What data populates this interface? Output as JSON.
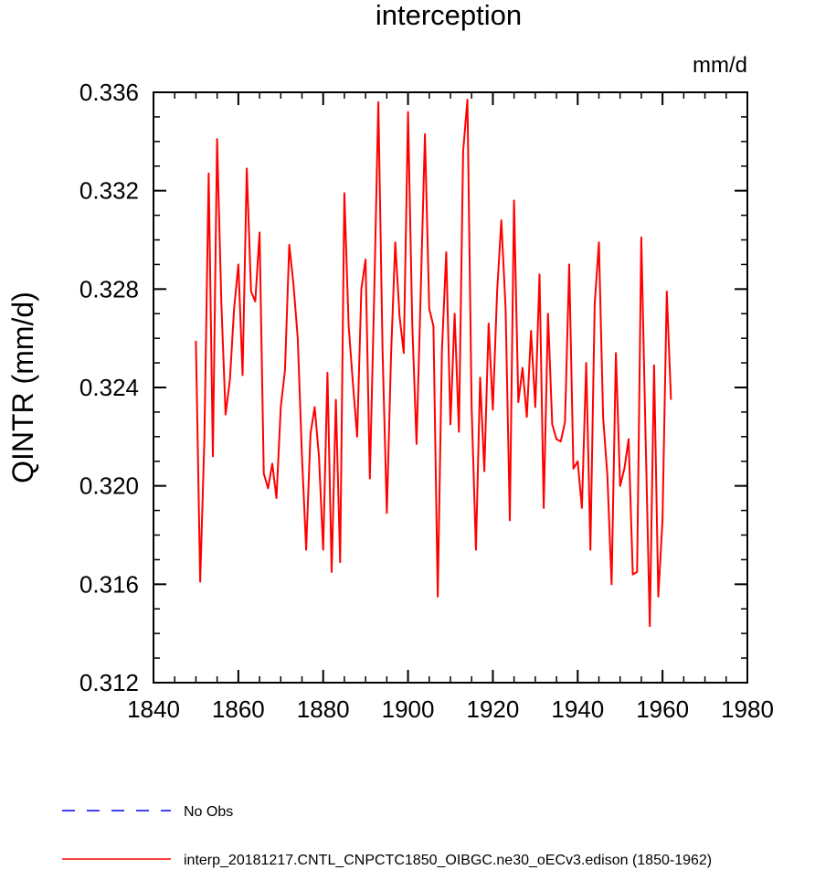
{
  "chart_data": {
    "type": "line",
    "title": "interception",
    "units_label": "mm/d",
    "ylabel": "QINTR  (mm/d)",
    "xlabel": "",
    "xlim": [
      1840,
      1980
    ],
    "ylim": [
      0.312,
      0.336
    ],
    "x_ticks": [
      "1840",
      "1860",
      "1880",
      "1900",
      "1920",
      "1940",
      "1960",
      "1980"
    ],
    "y_ticks": [
      "0.312",
      "0.316",
      "0.320",
      "0.324",
      "0.328",
      "0.332",
      "0.336"
    ],
    "x_minor_step": 5,
    "y_minor_step": 0.001,
    "grid": false,
    "legend_placement": "bottom",
    "series": [
      {
        "name": "No Obs",
        "color": "#0000ff",
        "dash": "dashed",
        "values": []
      },
      {
        "name": "interp_20181217.CNTL_CNPCTC1850_OIBGC.ne30_oECv3.edison (1850-1962)",
        "color": "#ff0000",
        "dash": "solid",
        "x": [
          1850,
          1851,
          1852,
          1853,
          1854,
          1855,
          1856,
          1857,
          1858,
          1859,
          1860,
          1861,
          1862,
          1863,
          1864,
          1865,
          1866,
          1867,
          1868,
          1869,
          1870,
          1871,
          1872,
          1873,
          1874,
          1875,
          1876,
          1877,
          1878,
          1879,
          1880,
          1881,
          1882,
          1883,
          1884,
          1885,
          1886,
          1887,
          1888,
          1889,
          1890,
          1891,
          1892,
          1893,
          1894,
          1895,
          1896,
          1897,
          1898,
          1899,
          1900,
          1901,
          1902,
          1903,
          1904,
          1905,
          1906,
          1907,
          1908,
          1909,
          1910,
          1911,
          1912,
          1913,
          1914,
          1915,
          1916,
          1917,
          1918,
          1919,
          1920,
          1921,
          1922,
          1923,
          1924,
          1925,
          1926,
          1927,
          1928,
          1929,
          1930,
          1931,
          1932,
          1933,
          1934,
          1935,
          1936,
          1937,
          1938,
          1939,
          1940,
          1941,
          1942,
          1943,
          1944,
          1945,
          1946,
          1947,
          1948,
          1949,
          1950,
          1951,
          1952,
          1953,
          1954,
          1955,
          1956,
          1957,
          1958,
          1959,
          1960,
          1961,
          1962
        ],
        "values": [
          0.3259,
          0.3161,
          0.3219,
          0.3327,
          0.3212,
          0.3341,
          0.3274,
          0.3229,
          0.3243,
          0.3272,
          0.329,
          0.3245,
          0.3329,
          0.3279,
          0.3275,
          0.3303,
          0.3205,
          0.3199,
          0.3209,
          0.3195,
          0.3232,
          0.3247,
          0.3298,
          0.3282,
          0.326,
          0.3212,
          0.3174,
          0.3221,
          0.3232,
          0.3212,
          0.3174,
          0.3246,
          0.3165,
          0.3235,
          0.3169,
          0.3319,
          0.3265,
          0.3242,
          0.322,
          0.328,
          0.3292,
          0.3203,
          0.3275,
          0.3356,
          0.3255,
          0.3189,
          0.3253,
          0.3299,
          0.3269,
          0.3254,
          0.3352,
          0.3266,
          0.3217,
          0.3279,
          0.3343,
          0.3272,
          0.3265,
          0.3155,
          0.3255,
          0.3295,
          0.3225,
          0.327,
          0.3222,
          0.3336,
          0.3357,
          0.3232,
          0.3174,
          0.3244,
          0.3206,
          0.3266,
          0.3231,
          0.3279,
          0.3308,
          0.3272,
          0.3186,
          0.3316,
          0.3234,
          0.3248,
          0.3228,
          0.3263,
          0.3232,
          0.3286,
          0.3191,
          0.327,
          0.3225,
          0.3219,
          0.3218,
          0.3226,
          0.329,
          0.3207,
          0.321,
          0.3191,
          0.325,
          0.3174,
          0.3274,
          0.3299,
          0.3228,
          0.3204,
          0.316,
          0.3254,
          0.32,
          0.3207,
          0.3219,
          0.3164,
          0.3165,
          0.3301,
          0.322,
          0.3143,
          0.3249,
          0.3155,
          0.3186,
          0.3279,
          0.3235
        ]
      }
    ]
  }
}
